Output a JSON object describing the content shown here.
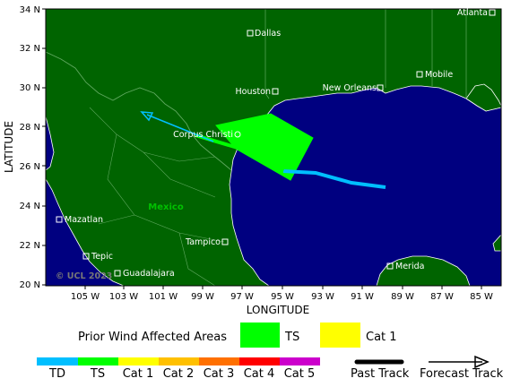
{
  "map": {
    "y_axis_title": "LATITUDE",
    "x_axis_title": "LONGITUDE",
    "lat_ticks": [
      "34 N",
      "32 N",
      "30 N",
      "28 N",
      "26 N",
      "24 N",
      "22 N",
      "20 N"
    ],
    "lon_ticks": [
      "105 W",
      "103 W",
      "101 W",
      "99 W",
      "97 W",
      "95 W",
      "93 W",
      "91 W",
      "89 W",
      "87 W",
      "85 W"
    ],
    "country_label": "Mexico",
    "copyright": "© UCL 2023",
    "cities": [
      {
        "name": "Atlanta"
      },
      {
        "name": "Dallas"
      },
      {
        "name": "Mobile"
      },
      {
        "name": "Houston"
      },
      {
        "name": "New Orleans"
      },
      {
        "name": "Corpus Christi"
      },
      {
        "name": "Mazatlan"
      },
      {
        "name": "Tampico"
      },
      {
        "name": "Tepic"
      },
      {
        "name": "Guadalajara"
      },
      {
        "name": "Merida"
      }
    ],
    "colors": {
      "land": "#006400",
      "ocean": "#000080",
      "border": "#5fa85f",
      "coast": "#ffffff"
    }
  },
  "track": {
    "past_color": "#00bfff",
    "forecast_color": "#00bfff",
    "wind_area_color": "#00ff00"
  },
  "legend": {
    "prior_wind_label": "Prior Wind Affected Areas",
    "ts_label": "TS",
    "cat1_label": "Cat 1",
    "ts_color": "#00ff00",
    "cat1_color": "#ffff00",
    "scale": [
      {
        "label": "TD",
        "color": "#00bfff"
      },
      {
        "label": "TS",
        "color": "#00ff00"
      },
      {
        "label": "Cat 1",
        "color": "#ffff00"
      },
      {
        "label": "Cat 2",
        "color": "#ffc000"
      },
      {
        "label": "Cat 3",
        "color": "#ff7000"
      },
      {
        "label": "Cat 4",
        "color": "#ff0000"
      },
      {
        "label": "Cat 5",
        "color": "#cc00cc"
      }
    ],
    "past_track_label": "Past Track",
    "forecast_track_label": "Forecast Track"
  }
}
